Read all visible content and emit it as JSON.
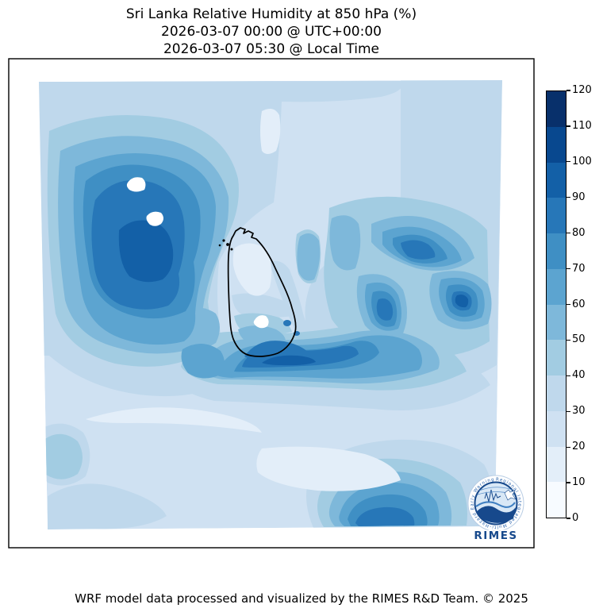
{
  "title": {
    "line1": "Sri Lanka Relative Humidity at 850 hPa (%)",
    "line2": "2026-03-07 00:00 @ UTC+00:00",
    "line3": "2026-03-07 05:30 @ Local Time"
  },
  "footer": "WRF model data processed and visualized by the RIMES R&D Team. © 2025",
  "logo": {
    "wordmark": "RIMES",
    "ring_text": "Regional Integrated Multi-Hazard Early Warning System"
  },
  "colorbar": {
    "min": 0,
    "max": 120,
    "step": 10,
    "tick_labels": [
      "0",
      "10",
      "20",
      "30",
      "40",
      "50",
      "60",
      "70",
      "80",
      "90",
      "100",
      "110",
      "120"
    ]
  },
  "chart_data": {
    "type": "heatmap",
    "variable": "Relative Humidity",
    "pressure_level": "850 hPa",
    "units": "%",
    "region": "Sri Lanka and surrounding ocean / southern India",
    "projection_note": "filled contour map, no lat/lon tick labels, black coastline of Sri Lanka",
    "levels": [
      0,
      10,
      20,
      30,
      40,
      50,
      60,
      70,
      80,
      90,
      100,
      110,
      120
    ],
    "palette": [
      "#f7fbff",
      "#e3eef9",
      "#cfe1f2",
      "#bfd8ec",
      "#a2cce2",
      "#7eb8da",
      "#5ca4d0",
      "#3f8fc4",
      "#2777b8",
      "#1360a7",
      "#08488f",
      "#08306b"
    ],
    "colorbar_orientation": "vertical-right",
    "features": [
      {
        "area": "northwest block (southern India)",
        "rh_percent": "60-100, core 90-100"
      },
      {
        "area": "north of Sri Lanka (Palk Strait corridor)",
        "rh_percent": "10-30"
      },
      {
        "area": "inside Sri Lanka north-center",
        "rh_percent": "10-30"
      },
      {
        "area": "south coast of Sri Lanka band",
        "rh_percent": "70-100"
      },
      {
        "area": "southeast diagonal bands",
        "rh_percent": "60-90"
      },
      {
        "area": "bottom-center ocean",
        "rh_percent": "10-30"
      },
      {
        "area": "bottom edge blob",
        "rh_percent": "60-90"
      },
      {
        "area": "masked white holes (lakes/no-data)",
        "rh_percent": "none"
      }
    ]
  }
}
